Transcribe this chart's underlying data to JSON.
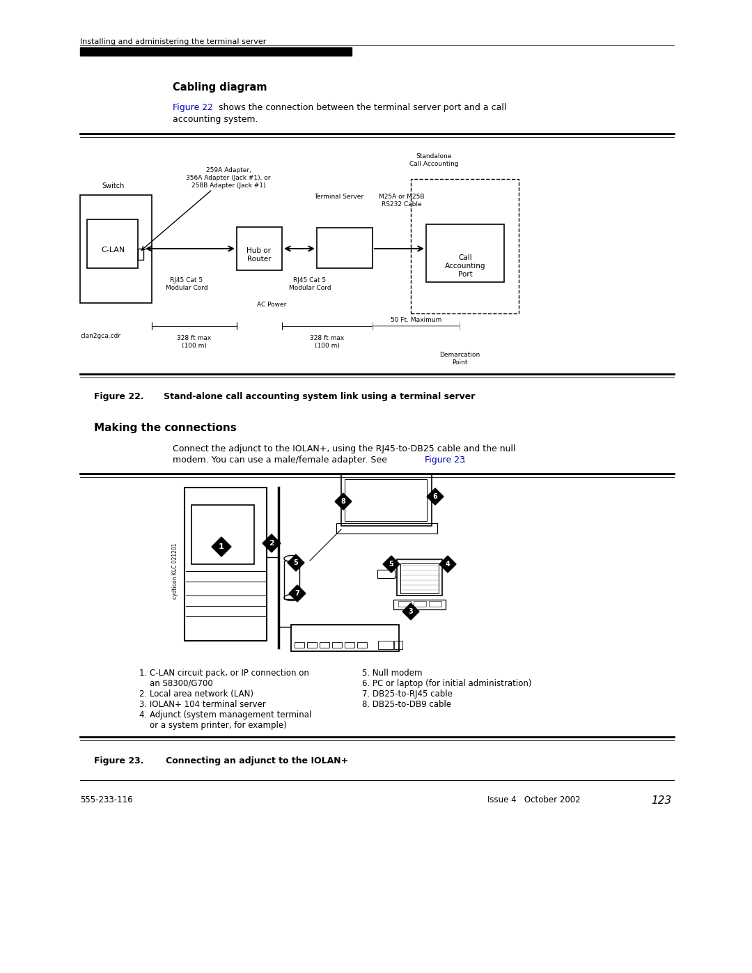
{
  "bg_color": "#ffffff",
  "page_width": 10.8,
  "page_height": 13.97,
  "header_text": "Installing and administering the terminal server",
  "section1_title": "Cabling diagram",
  "figure22_caption_bold": "Figure 22.",
  "figure22_caption_rest": "   Stand-alone call accounting system link using a terminal server",
  "section2_title": "Making the connections",
  "figure23_caption_bold": "Figure 23.",
  "figure23_caption_rest": "   Connecting an adjunct to the IOLAN+",
  "footer_left": "555-233-116",
  "footer_right": "Issue 4   October 2002",
  "footer_page": "123",
  "blue_color": "#0000bb"
}
